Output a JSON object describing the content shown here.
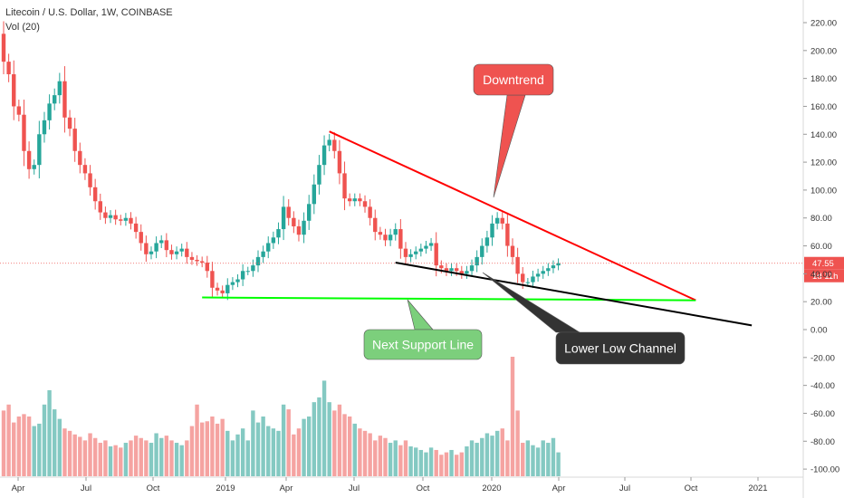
{
  "header": {
    "title": "Litecoin / U.S. Dollar, 1W, COINBASE",
    "volume_label": "Vol (20)"
  },
  "chart_data": {
    "type": "candlestick",
    "x_tick_labels": [
      "Apr",
      "Jul",
      "Oct",
      "2019",
      "Apr",
      "Jul",
      "Oct",
      "2020",
      "Apr",
      "Jul",
      "Oct",
      "2021"
    ],
    "y_ticks": [
      220,
      200,
      180,
      160,
      140,
      120,
      100,
      80,
      60,
      40,
      20,
      0,
      -20,
      -40,
      -60,
      -80,
      -100
    ],
    "y_tick_labels": [
      "220.00",
      "200.00",
      "180.00",
      "160.00",
      "140.00",
      "120.00",
      "100.00",
      "80.00",
      "60.00",
      "40.00",
      "20.00",
      "0.00",
      "-20.00",
      "-40.00",
      "-60.00",
      "-80.00",
      "-100.00"
    ],
    "ylim": [
      -105,
      232
    ],
    "colors": {
      "up": "#26a69a",
      "down": "#ef5350",
      "up_volume": "#84c9c2",
      "down_volume": "#f5a3a1"
    },
    "candles_close": [
      192,
      183,
      160,
      154,
      128,
      115,
      118,
      140,
      150,
      162,
      168,
      178,
      152,
      144,
      128,
      118,
      112,
      102,
      92,
      84,
      80,
      82,
      79,
      78,
      80,
      76,
      70,
      62,
      54,
      56,
      62,
      64,
      57,
      54,
      56,
      58,
      52,
      50,
      49,
      48,
      42,
      30,
      28,
      26,
      32,
      34,
      36,
      42,
      42,
      46,
      52,
      56,
      62,
      66,
      72,
      88,
      80,
      74,
      68,
      78,
      90,
      104,
      118,
      132,
      136,
      128,
      112,
      94,
      92,
      94,
      92,
      88,
      80,
      70,
      68,
      64,
      68,
      72,
      58,
      52,
      54,
      56,
      58,
      60,
      62,
      46,
      44,
      42,
      44,
      42,
      40,
      42,
      46,
      52,
      60,
      66,
      76,
      80,
      76,
      60,
      52,
      40,
      34,
      34,
      38,
      40,
      42,
      44,
      46,
      47.55
    ],
    "volume_bars": [
      0.55,
      0.6,
      0.45,
      0.5,
      0.52,
      0.5,
      0.42,
      0.44,
      0.6,
      0.72,
      0.56,
      0.48,
      0.4,
      0.38,
      0.35,
      0.33,
      0.3,
      0.36,
      0.32,
      0.28,
      0.3,
      0.25,
      0.26,
      0.24,
      0.28,
      0.3,
      0.34,
      0.32,
      0.3,
      0.28,
      0.36,
      0.32,
      0.34,
      0.3,
      0.28,
      0.26,
      0.3,
      0.42,
      0.6,
      0.45,
      0.46,
      0.5,
      0.44,
      0.48,
      0.38,
      0.3,
      0.35,
      0.4,
      0.3,
      0.55,
      0.45,
      0.5,
      0.42,
      0.4,
      0.38,
      0.6,
      0.56,
      0.35,
      0.4,
      0.48,
      0.5,
      0.62,
      0.66,
      0.8,
      0.62,
      0.55,
      0.6,
      0.52,
      0.5,
      0.44,
      0.4,
      0.38,
      0.36,
      0.3,
      0.34,
      0.32,
      0.28,
      0.3,
      0.26,
      0.3,
      0.25,
      0.24,
      0.22,
      0.2,
      0.24,
      0.22,
      0.18,
      0.2,
      0.22,
      0.18,
      0.2,
      0.25,
      0.3,
      0.28,
      0.32,
      0.36,
      0.34,
      0.38,
      0.4,
      0.3,
      1.0,
      0.55,
      0.28,
      0.3,
      0.26,
      0.24,
      0.3,
      0.28,
      0.32,
      0.2
    ],
    "current_price": 47.55,
    "current_price_label": "47.55",
    "countdown_label": "1d 11h",
    "trendlines": [
      {
        "name": "Downtrend",
        "color": "#ff0000",
        "from": {
          "index": 64,
          "price": 142
        },
        "to": {
          "index": 136,
          "price": 21
        }
      },
      {
        "name": "Next Support Line",
        "color": "#00ff00",
        "from": {
          "index": 39,
          "price": 23
        },
        "to": {
          "index": 136,
          "price": 21
        }
      },
      {
        "name": "Lower Low Channel",
        "color": "#000000",
        "from": {
          "index": 77,
          "price": 48
        },
        "to": {
          "index": 147,
          "price": 3
        }
      }
    ],
    "annotations": [
      {
        "text": "Downtrend",
        "bg": "#ef5350",
        "fg": "#ffffff"
      },
      {
        "text": "Next Support Line",
        "bg": "#7ccf7c",
        "fg": "#ffffff"
      },
      {
        "text": "Lower Low Channel",
        "bg": "#333333",
        "fg": "#ffffff"
      }
    ]
  }
}
